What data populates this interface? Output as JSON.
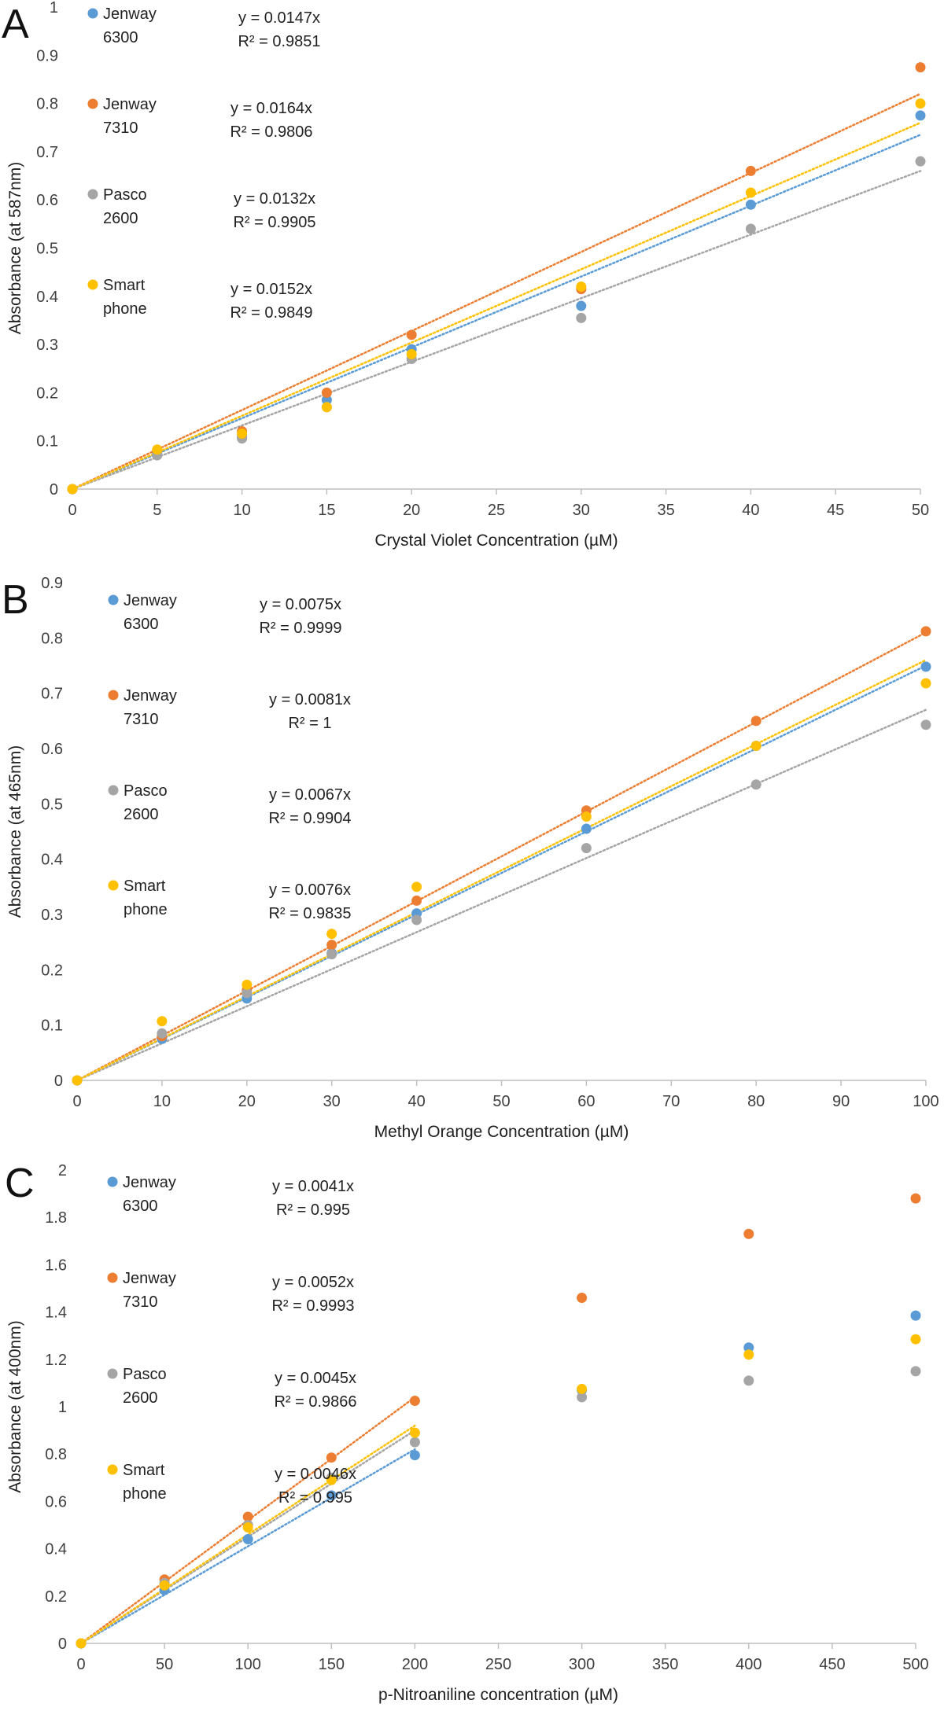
{
  "chart_data": [
    {
      "type": "scatter",
      "panel": "A",
      "xlabel": "Crystal Violet Concentration (µM)",
      "ylabel": "Absorbance (at 587nm)",
      "xlim": [
        0,
        50
      ],
      "ylim": [
        0,
        1
      ],
      "x_ticks": [
        "0",
        "5",
        "10",
        "15",
        "20",
        "25",
        "30",
        "35",
        "40",
        "45",
        "50"
      ],
      "y_ticks": [
        "0",
        "0.1",
        "0.2",
        "0.3",
        "0.4",
        "0.5",
        "0.6",
        "0.7",
        "0.8",
        "0.9",
        "1"
      ],
      "grid": false,
      "legend_position": "top-left",
      "series": [
        {
          "name": "Jenway 6300",
          "name_lines": [
            "Jenway",
            "6300"
          ],
          "color": "#5B9BD5",
          "x": [
            0,
            5,
            10,
            15,
            20,
            30,
            40,
            50
          ],
          "y": [
            0,
            0.075,
            0.11,
            0.185,
            0.29,
            0.38,
            0.59,
            0.775
          ],
          "equation": "y = 0.0147x",
          "r2": "R² = 0.9851",
          "slope": 0.0147,
          "fit_x_end": 50
        },
        {
          "name": "Jenway 7310",
          "name_lines": [
            "Jenway",
            "7310"
          ],
          "color": "#ED7D31",
          "x": [
            0,
            5,
            10,
            15,
            20,
            30,
            40,
            50
          ],
          "y": [
            0,
            0.08,
            0.12,
            0.2,
            0.32,
            0.415,
            0.66,
            0.875
          ],
          "equation": "y = 0.0164x",
          "r2": "R² = 0.9806",
          "slope": 0.0164,
          "fit_x_end": 50
        },
        {
          "name": "Pasco 2600",
          "name_lines": [
            "Pasco",
            "2600"
          ],
          "color": "#A5A5A5",
          "x": [
            0,
            5,
            10,
            15,
            20,
            30,
            40,
            50
          ],
          "y": [
            0,
            0.07,
            0.105,
            0.17,
            0.27,
            0.355,
            0.54,
            0.68
          ],
          "equation": "y = 0.0132x",
          "r2": "R² = 0.9905",
          "slope": 0.0132,
          "fit_x_end": 50
        },
        {
          "name": "Smart phone",
          "name_lines": [
            "Smart",
            "phone"
          ],
          "color": "#FFC000",
          "x": [
            0,
            5,
            10,
            15,
            20,
            30,
            40,
            50
          ],
          "y": [
            0,
            0.082,
            0.115,
            0.17,
            0.28,
            0.42,
            0.615,
            0.8
          ],
          "equation": "y = 0.0152x",
          "r2": "R² = 0.9849",
          "slope": 0.0152,
          "fit_x_end": 50
        }
      ]
    },
    {
      "type": "scatter",
      "panel": "B",
      "xlabel": "Methyl Orange Concentration (µM)",
      "ylabel": "Absorbance (at 465nm)",
      "xlim": [
        0,
        100
      ],
      "ylim": [
        0,
        0.9
      ],
      "x_ticks": [
        "0",
        "10",
        "20",
        "30",
        "40",
        "50",
        "60",
        "70",
        "80",
        "90",
        "100"
      ],
      "y_ticks": [
        "0",
        "0.1",
        "0.2",
        "0.3",
        "0.4",
        "0.5",
        "0.6",
        "0.7",
        "0.8",
        "0.9"
      ],
      "grid": false,
      "legend_position": "top-left",
      "series": [
        {
          "name": "Jenway 6300",
          "name_lines": [
            "Jenway",
            "6300"
          ],
          "color": "#5B9BD5",
          "x": [
            0,
            10,
            20,
            30,
            40,
            60,
            80,
            100
          ],
          "y": [
            0,
            0.075,
            0.148,
            0.23,
            0.302,
            0.455,
            0.605,
            0.748
          ],
          "equation": "y = 0.0075x",
          "r2": "R² = 0.9999",
          "slope": 0.0075,
          "fit_x_end": 100
        },
        {
          "name": "Jenway 7310",
          "name_lines": [
            "Jenway",
            "7310"
          ],
          "color": "#ED7D31",
          "x": [
            0,
            10,
            20,
            30,
            40,
            60,
            80,
            100
          ],
          "y": [
            0,
            0.08,
            0.163,
            0.245,
            0.325,
            0.488,
            0.65,
            0.812
          ],
          "equation": "y = 0.0081x",
          "r2": "R² = 1",
          "slope": 0.0081,
          "fit_x_end": 100
        },
        {
          "name": "Pasco 2600",
          "name_lines": [
            "Pasco",
            "2600"
          ],
          "color": "#A5A5A5",
          "x": [
            0,
            10,
            20,
            30,
            40,
            60,
            80,
            100
          ],
          "y": [
            0,
            0.085,
            0.158,
            0.228,
            0.29,
            0.42,
            0.535,
            0.643
          ],
          "equation": "y = 0.0067x",
          "r2": "R² = 0.9904",
          "slope": 0.0067,
          "fit_x_end": 100
        },
        {
          "name": "Smart phone",
          "name_lines": [
            "Smart",
            "phone"
          ],
          "color": "#FFC000",
          "x": [
            0,
            10,
            20,
            30,
            40,
            60,
            80,
            100
          ],
          "y": [
            0,
            0.107,
            0.173,
            0.265,
            0.35,
            0.477,
            0.605,
            0.718
          ],
          "equation": "y = 0.0076x",
          "r2": "R² = 0.9835",
          "slope": 0.0076,
          "fit_x_end": 100
        }
      ]
    },
    {
      "type": "scatter",
      "panel": "C",
      "xlabel": "p-Nitroaniline concentration (µM)",
      "ylabel": "Absorbance (at 400nm)",
      "xlim": [
        0,
        500
      ],
      "ylim": [
        0,
        2
      ],
      "x_ticks": [
        "0",
        "50",
        "100",
        "150",
        "200",
        "250",
        "300",
        "350",
        "400",
        "450",
        "500"
      ],
      "y_ticks": [
        "0",
        "0.2",
        "0.4",
        "0.6",
        "0.8",
        "1",
        "1.2",
        "1.4",
        "1.6",
        "1.8",
        "2"
      ],
      "grid": false,
      "legend_position": "top-left",
      "series": [
        {
          "name": "Jenway 6300",
          "name_lines": [
            "Jenway",
            "6300"
          ],
          "color": "#5B9BD5",
          "x": [
            0,
            50,
            100,
            150,
            200,
            300,
            400,
            500
          ],
          "y": [
            0,
            0.225,
            0.44,
            0.625,
            0.795,
            1.07,
            1.25,
            1.385
          ],
          "equation": "y = 0.0041x",
          "r2": "R² = 0.995",
          "slope": 0.0041,
          "fit_x_end": 200
        },
        {
          "name": "Jenway 7310",
          "name_lines": [
            "Jenway",
            "7310"
          ],
          "color": "#ED7D31",
          "x": [
            0,
            50,
            100,
            150,
            200,
            300,
            400,
            500
          ],
          "y": [
            0,
            0.27,
            0.535,
            0.785,
            1.025,
            1.46,
            1.73,
            1.88
          ],
          "equation": "y = 0.0052x",
          "r2": "R² = 0.9993",
          "slope": 0.0052,
          "fit_x_end": 200
        },
        {
          "name": "Pasco 2600",
          "name_lines": [
            "Pasco",
            "2600"
          ],
          "color": "#A5A5A5",
          "x": [
            0,
            50,
            100,
            150,
            200,
            300,
            400,
            500
          ],
          "y": [
            0,
            0.255,
            0.5,
            0.7,
            0.85,
            1.04,
            1.11,
            1.15
          ],
          "equation": "y = 0.0045x",
          "r2": "R² = 0.9866",
          "slope": 0.0045,
          "fit_x_end": 200
        },
        {
          "name": "Smart phone",
          "name_lines": [
            "Smart",
            "phone"
          ],
          "color": "#FFC000",
          "x": [
            0,
            50,
            100,
            150,
            200,
            300,
            400,
            500
          ],
          "y": [
            0,
            0.245,
            0.49,
            0.69,
            0.89,
            1.075,
            1.22,
            1.285
          ],
          "equation": "y = 0.0046x",
          "r2": "R² = 0.995",
          "slope": 0.0046,
          "fit_x_end": 200
        }
      ]
    }
  ]
}
